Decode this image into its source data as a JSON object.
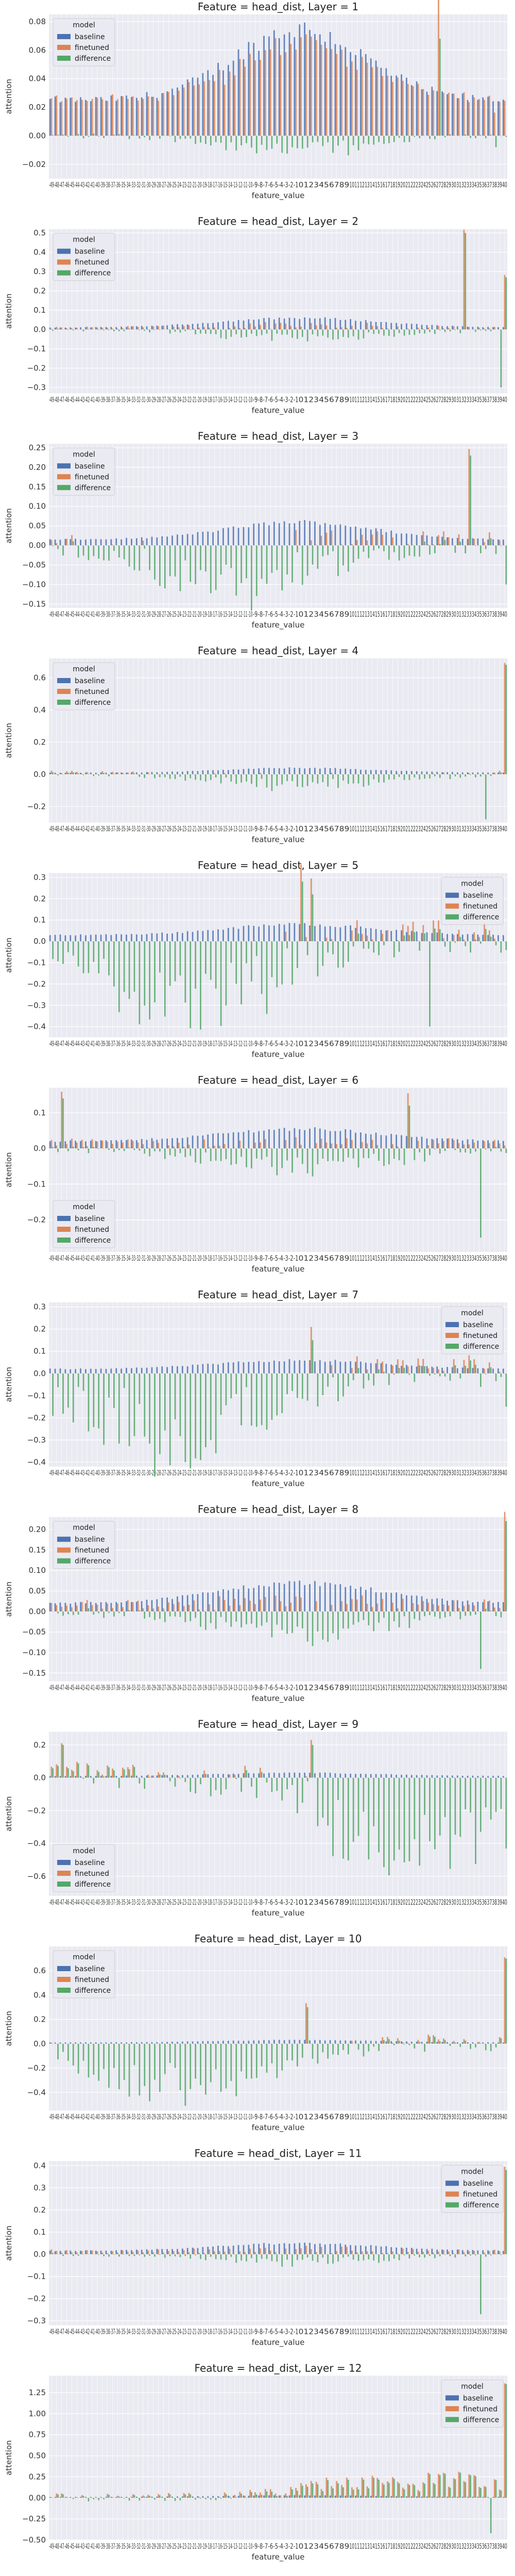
{
  "figure": {
    "legend_title": "model",
    "series_names": [
      "baseline",
      "finetuned",
      "difference"
    ],
    "series_colors": [
      "#4c72b0",
      "#dd8452",
      "#55a868"
    ],
    "plot_bg": "#eaeaf2",
    "grid_color": "#ffffff",
    "x_categories": [
      "-49",
      "-48",
      "-47",
      "-46",
      "-45",
      "-44",
      "-43",
      "-42",
      "-41",
      "-40",
      "-39",
      "-38",
      "-37",
      "-36",
      "-35",
      "-34",
      "-33",
      "-32",
      "-31",
      "-30",
      "-29",
      "-28",
      "-27",
      "-26",
      "-25",
      "-24",
      "-23",
      "-22",
      "-21",
      "-20",
      "-19",
      "-18",
      "-17",
      "-16",
      "-15",
      "-14",
      "-13",
      "-12",
      "-11",
      "-10",
      "-9",
      "-8",
      "-7",
      "-6",
      "-5",
      "-4",
      "-3",
      "-2",
      "-1",
      "0",
      "1",
      "2",
      "3",
      "4",
      "5",
      "6",
      "7",
      "8",
      "9",
      "10",
      "11",
      "12",
      "13",
      "14",
      "15",
      "16",
      "17",
      "18",
      "19",
      "20",
      "21",
      "22",
      "23",
      "24",
      "25",
      "26",
      "27",
      "28",
      "29",
      "30",
      "31",
      "32",
      "33",
      "34",
      "35",
      "36",
      "37",
      "38",
      "39",
      "40"
    ]
  },
  "chart_data": [
    {
      "type": "bar",
      "title": "Feature = head_dist, Layer = 1",
      "xlabel": "feature_value",
      "ylabel": "attention",
      "ylim": [
        -0.03,
        0.085
      ],
      "yticks": [
        -0.02,
        0.0,
        0.02,
        0.04,
        0.06,
        0.08
      ],
      "ytick_labels": [
        "−0.02",
        "0.00",
        "0.02",
        "0.04",
        "0.06",
        "0.08"
      ],
      "legend_position": "top-left",
      "gen": {
        "kind": "hump",
        "peak": 0.075,
        "base": 0.025,
        "width": 18,
        "diff": -0.012,
        "spikes": [
          [
            76,
            0.068,
            0.05
          ],
          [
            87,
            -0.008,
            -0.028
          ]
        ]
      }
    },
    {
      "type": "bar",
      "title": "Feature = head_dist, Layer = 2",
      "xlabel": "feature_value",
      "ylabel": "attention",
      "ylim": [
        -0.33,
        0.52
      ],
      "yticks": [
        -0.3,
        -0.2,
        -0.1,
        0.0,
        0.1,
        0.2,
        0.3,
        0.4,
        0.5
      ],
      "ytick_labels": [
        "−0.3",
        "−0.2",
        "−0.1",
        "0.0",
        "0.1",
        "0.2",
        "0.3",
        "0.4",
        "0.5"
      ],
      "legend_position": "top-left",
      "gen": {
        "kind": "hump",
        "peak": 0.06,
        "base": 0.01,
        "width": 22,
        "diff": -0.05,
        "spikes": [
          [
            81,
            0.5,
            0.5
          ],
          [
            88,
            -0.3,
            -0.3
          ],
          [
            89,
            0.27,
            0.27
          ]
        ]
      }
    },
    {
      "type": "bar",
      "title": "Feature = head_dist, Layer = 3",
      "xlabel": "feature_value",
      "ylabel": "attention",
      "ylim": [
        -0.16,
        0.26
      ],
      "yticks": [
        -0.15,
        -0.1,
        -0.05,
        0.0,
        0.05,
        0.1,
        0.15,
        0.2,
        0.25
      ],
      "ytick_labels": [
        "−0.15",
        "−0.10",
        "−0.05",
        "0.00",
        "0.05",
        "0.10",
        "0.15",
        "0.20",
        "0.25"
      ],
      "legend_position": "top-left",
      "gen": {
        "kind": "hump",
        "peak": 0.06,
        "base": 0.015,
        "width": 20,
        "diff": -0.13,
        "diffcenter": 35,
        "spikes": [
          [
            82,
            0.23,
            0.23
          ],
          [
            89,
            -0.1,
            -0.1
          ]
        ]
      }
    },
    {
      "type": "bar",
      "title": "Feature = head_dist, Layer = 4",
      "xlabel": "feature_value",
      "ylabel": "attention",
      "ylim": [
        -0.3,
        0.72
      ],
      "yticks": [
        -0.2,
        0.0,
        0.2,
        0.4,
        0.6
      ],
      "ytick_labels": [
        "−0.2",
        "0.0",
        "0.2",
        "0.4",
        "0.6"
      ],
      "legend_position": "top-left",
      "gen": {
        "kind": "hump",
        "peak": 0.04,
        "base": 0.01,
        "width": 20,
        "diff": -0.08,
        "spikes": [
          [
            89,
            0.68,
            0.68
          ],
          [
            85,
            -0.28,
            -0.28
          ]
        ]
      }
    },
    {
      "type": "bar",
      "title": "Feature = head_dist, Layer = 5",
      "xlabel": "feature_value",
      "ylabel": "attention",
      "ylim": [
        -0.45,
        0.32
      ],
      "yticks": [
        -0.4,
        -0.3,
        -0.2,
        -0.1,
        0.0,
        0.1,
        0.2,
        0.3
      ],
      "ytick_labels": [
        "−0.4",
        "−0.3",
        "−0.2",
        "−0.1",
        "0.0",
        "0.1",
        "0.2",
        "0.3"
      ],
      "legend_position": "top-right",
      "gen": {
        "kind": "hump",
        "peak": 0.08,
        "base": 0.03,
        "width": 20,
        "diff": -0.36,
        "diffcenter": 28,
        "spikes": [
          [
            51,
            0.22,
            0.22
          ],
          [
            74,
            -0.4,
            -0.4
          ],
          [
            49,
            0.28,
            0.28
          ]
        ]
      }
    },
    {
      "type": "bar",
      "title": "Feature = head_dist, Layer = 6",
      "xlabel": "feature_value",
      "ylabel": "attention",
      "ylim": [
        -0.29,
        0.17
      ],
      "yticks": [
        -0.2,
        -0.1,
        0.0,
        0.1
      ],
      "ytick_labels": [
        "−0.2",
        "−0.1",
        "0.0",
        "0.1"
      ],
      "legend_position": "bottom-left",
      "gen": {
        "kind": "hump",
        "peak": 0.055,
        "base": 0.02,
        "width": 22,
        "diff": -0.06,
        "spikes": [
          [
            84,
            -0.25,
            -0.25
          ],
          [
            2,
            0.14,
            0.14
          ],
          [
            70,
            0.12,
            0.12
          ]
        ]
      }
    },
    {
      "type": "bar",
      "title": "Feature = head_dist, Layer = 7",
      "xlabel": "feature_value",
      "ylabel": "attention",
      "ylim": [
        -0.42,
        0.32
      ],
      "yticks": [
        -0.4,
        -0.3,
        -0.2,
        -0.1,
        0.0,
        0.1,
        0.2,
        0.3
      ],
      "ytick_labels": [
        "−0.4",
        "−0.3",
        "−0.2",
        "−0.1",
        "0.0",
        "0.1",
        "0.2",
        "0.3"
      ],
      "legend_position": "top-right",
      "gen": {
        "kind": "hump",
        "peak": 0.06,
        "base": 0.02,
        "width": 22,
        "diff": -0.36,
        "diffcenter": 25,
        "spikes": [
          [
            51,
            0.15,
            0.15
          ],
          [
            89,
            -0.15,
            -0.15
          ]
        ]
      }
    },
    {
      "type": "bar",
      "title": "Feature = head_dist, Layer = 8",
      "xlabel": "feature_value",
      "ylabel": "attention",
      "ylim": [
        -0.17,
        0.23
      ],
      "yticks": [
        -0.15,
        -0.1,
        -0.05,
        0.0,
        0.05,
        0.1,
        0.15,
        0.2
      ],
      "ytick_labels": [
        "−0.15",
        "−0.10",
        "−0.05",
        "0.00",
        "0.05",
        "0.10",
        "0.15",
        "0.20"
      ],
      "legend_position": "top-left",
      "gen": {
        "kind": "hump",
        "peak": 0.07,
        "base": 0.02,
        "width": 22,
        "diff": -0.06,
        "spikes": [
          [
            89,
            0.22,
            0.22
          ],
          [
            84,
            -0.14,
            -0.14
          ]
        ]
      }
    },
    {
      "type": "bar",
      "title": "Feature = head_dist, Layer = 9",
      "xlabel": "feature_value",
      "ylabel": "attention",
      "ylim": [
        -0.72,
        0.28
      ],
      "yticks": [
        -0.6,
        -0.4,
        -0.2,
        0.0,
        0.2
      ],
      "ytick_labels": [
        "−0.6",
        "−0.4",
        "−0.2",
        "0.0",
        "0.2"
      ],
      "legend_position": "bottom-left",
      "gen": {
        "kind": "hump",
        "peak": 0.03,
        "base": 0.01,
        "width": 22,
        "diff": -0.5,
        "diffcenter": 72,
        "spikes": [
          [
            51,
            0.2,
            0.2
          ],
          [
            2,
            0.2,
            0.2
          ]
        ]
      }
    },
    {
      "type": "bar",
      "title": "Feature = head_dist, Layer = 10",
      "xlabel": "feature_value",
      "ylabel": "attention",
      "ylim": [
        -0.55,
        0.8
      ],
      "yticks": [
        -0.4,
        -0.2,
        0.0,
        0.2,
        0.4,
        0.6
      ],
      "ytick_labels": [
        "−0.4",
        "−0.2",
        "0.0",
        "0.2",
        "0.4",
        "0.6"
      ],
      "legend_position": "top-left",
      "gen": {
        "kind": "hump",
        "peak": 0.03,
        "base": 0.01,
        "width": 22,
        "diff": -0.38,
        "diffcenter": 25,
        "spikes": [
          [
            89,
            0.7,
            0.7
          ],
          [
            50,
            0.3,
            0.3
          ]
        ]
      }
    },
    {
      "type": "bar",
      "title": "Feature = head_dist, Layer = 11",
      "xlabel": "feature_value",
      "ylabel": "attention",
      "ylim": [
        -0.32,
        0.42
      ],
      "yticks": [
        -0.3,
        -0.2,
        -0.1,
        0.0,
        0.1,
        0.2,
        0.3,
        0.4
      ],
      "ytick_labels": [
        "−0.3",
        "−0.2",
        "−0.1",
        "0.0",
        "0.1",
        "0.2",
        "0.3",
        "0.4"
      ],
      "legend_position": "top-right",
      "gen": {
        "kind": "hump",
        "peak": 0.05,
        "base": 0.015,
        "width": 22,
        "diff": -0.04,
        "spikes": [
          [
            89,
            0.38,
            0.38
          ],
          [
            84,
            -0.27,
            -0.27
          ]
        ]
      }
    },
    {
      "type": "bar",
      "title": "Feature = head_dist, Layer = 12",
      "xlabel": "feature_value",
      "ylabel": "attention",
      "ylim": [
        -0.5,
        1.45
      ],
      "yticks": [
        -0.5,
        -0.25,
        0.0,
        0.25,
        0.5,
        0.75,
        1.0,
        1.25
      ],
      "ytick_labels": [
        "−0.50",
        "−0.25",
        "0.00",
        "0.25",
        "0.50",
        "0.75",
        "1.00",
        "1.25"
      ],
      "legend_position": "top-right",
      "gen": {
        "kind": "hump",
        "peak": 0.03,
        "base": 0.01,
        "width": 22,
        "diff": 0.25,
        "diffcenter": 72,
        "spikes": [
          [
            89,
            1.35,
            1.35
          ],
          [
            86,
            -0.42,
            -0.42
          ]
        ]
      }
    }
  ]
}
